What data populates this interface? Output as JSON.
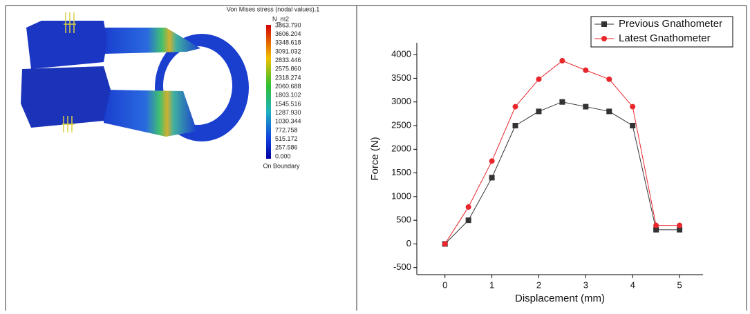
{
  "fea_legend": {
    "title": "Von Mises stress (nodal values).1",
    "unit": "N_m2",
    "labels": [
      "3863.790",
      "3606.204",
      "3348.618",
      "3091.032",
      "2833.446",
      "2575.860",
      "2318.274",
      "2060.688",
      "1803.102",
      "1545.516",
      "1287.930",
      "1030.344",
      "772.758",
      "515.172",
      "257.586",
      "0.000"
    ],
    "footer": "On Boundary"
  },
  "chart_data": {
    "type": "line",
    "x_label": "Displacement (mm)",
    "y_label": "Force (N)",
    "x": [
      0,
      0.5,
      1,
      1.5,
      2,
      2.5,
      3,
      3.5,
      4,
      4.5,
      5
    ],
    "series": [
      {
        "name": "Previous Gnathometer",
        "color": "#333333",
        "marker": "square",
        "values": [
          0,
          500,
          1400,
          2500,
          2800,
          3000,
          2900,
          2800,
          2500,
          300,
          300
        ]
      },
      {
        "name": "Latest Gnathometer",
        "color": "#e8262c",
        "marker": "circle",
        "values": [
          0,
          780,
          1750,
          2900,
          3480,
          3870,
          3670,
          3480,
          2900,
          390,
          390
        ]
      }
    ],
    "xlim": [
      -0.6,
      5.5
    ],
    "xticks": [
      0,
      1,
      2,
      3,
      4,
      5
    ],
    "ylim": [
      -650,
      4250
    ],
    "yticks": [
      -500,
      0,
      500,
      1000,
      1500,
      2000,
      2500,
      3000,
      3500,
      4000
    ],
    "legend": "upper right",
    "grid": false
  }
}
